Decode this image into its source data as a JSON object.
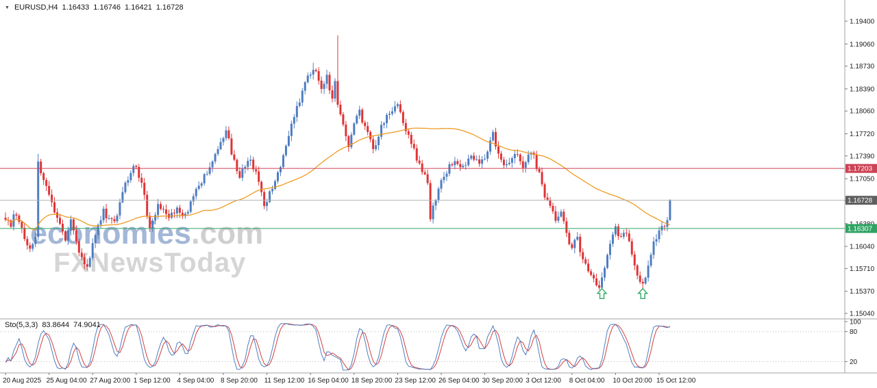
{
  "header": {
    "dropdown_icon": "▼",
    "symbol": "EURUSD,H4",
    "open": "1.16433",
    "high": "1.16746",
    "low": "1.16421",
    "close": "1.16728"
  },
  "watermark": {
    "brand": "economies",
    "brand_suffix": ".com",
    "tagline": "FXNewsToday"
  },
  "indicator": {
    "label": "Sto(5,3,3)",
    "value_main": "83.8644",
    "value_signal": "74.9041"
  },
  "colors": {
    "candle_up": "#4f7dc0",
    "candle_down": "#df3336",
    "ma_line": "#ee9a20",
    "level_red_line": "#cc4154",
    "level_red_badge": "#cc4154",
    "level_green_line": "#2fa363",
    "level_green_badge": "#2fa363",
    "current_price_line": "#b3b3b3",
    "current_price_badge": "#5f5f5f",
    "sto_main": "#4f7dc0",
    "sto_signal": "#d23f3f",
    "sto_level_line": "#bbbbbb",
    "axis_text": "#1c1c1c",
    "separator": "#a0a0a0",
    "tick": "#777777",
    "arrow_green": "#3fae6e"
  },
  "chart_data": {
    "type": "candlestick",
    "symbol": "EURUSD",
    "timeframe": "H4",
    "candle_count": 245,
    "y_axis": {
      "min": 1.1504,
      "max": 1.194,
      "ticks": [
        {
          "label": "1.19400",
          "price": 1.194
        },
        {
          "label": "1.19060",
          "price": 1.1906
        },
        {
          "label": "1.18730",
          "price": 1.1873
        },
        {
          "label": "1.18390",
          "price": 1.1839
        },
        {
          "label": "1.18060",
          "price": 1.1806
        },
        {
          "label": "1.17720",
          "price": 1.1772
        },
        {
          "label": "1.17390",
          "price": 1.1739
        },
        {
          "label": "1.17050",
          "price": 1.1705
        },
        {
          "label": "1.16720",
          "price": 1.1672
        },
        {
          "label": "1.16380",
          "price": 1.1638
        },
        {
          "label": "1.16040",
          "price": 1.1604
        },
        {
          "label": "1.15710",
          "price": 1.1571
        },
        {
          "label": "1.15370",
          "price": 1.1537
        },
        {
          "label": "1.15040",
          "price": 1.1504
        }
      ]
    },
    "x_axis": {
      "labels": [
        {
          "text": "20 Aug 2025",
          "index": 0
        },
        {
          "text": "25 Aug 04:00",
          "index": 16
        },
        {
          "text": "27 Aug 20:00",
          "index": 32
        },
        {
          "text": "1 Sep 12:00",
          "index": 48
        },
        {
          "text": "4 Sep 04:00",
          "index": 64
        },
        {
          "text": "8 Sep 20:00",
          "index": 80
        },
        {
          "text": "11 Sep 12:00",
          "index": 96
        },
        {
          "text": "16 Sep 04:00",
          "index": 112
        },
        {
          "text": "18 Sep 20:00",
          "index": 128
        },
        {
          "text": "23 Sep 12:00",
          "index": 144
        },
        {
          "text": "26 Sep 04:00",
          "index": 160
        },
        {
          "text": "30 Sep 20:00",
          "index": 176
        },
        {
          "text": "3 Oct 12:00",
          "index": 192
        },
        {
          "text": "8 Oct 04:00",
          "index": 208
        },
        {
          "text": "10 Oct 20:00",
          "index": 224
        },
        {
          "text": "15 Oct 12:00",
          "index": 240
        }
      ]
    },
    "levels": [
      {
        "label": "1.17203",
        "price": 1.17203,
        "line_color": "level_red_line",
        "badge_color": "level_red_badge",
        "kind": "resistance"
      },
      {
        "label": "1.16307",
        "price": 1.16307,
        "line_color": "level_green_line",
        "badge_color": "level_green_badge",
        "kind": "support"
      },
      {
        "label": "1.16728",
        "price": 1.16728,
        "line_color": "current_price_line",
        "badge_color": "current_price_badge",
        "kind": "current-price"
      }
    ],
    "price_path": [
      [
        0,
        1.1648
      ],
      [
        2,
        1.1638
      ],
      [
        4,
        1.1655
      ],
      [
        6,
        1.163
      ],
      [
        9,
        1.1596
      ],
      [
        11,
        1.1615
      ],
      [
        12,
        1.173
      ],
      [
        15,
        1.169
      ],
      [
        18,
        1.166
      ],
      [
        22,
        1.1612
      ],
      [
        24,
        1.164
      ],
      [
        27,
        1.16
      ],
      [
        30,
        1.1572
      ],
      [
        33,
        1.162
      ],
      [
        36,
        1.1655
      ],
      [
        40,
        1.164
      ],
      [
        44,
        1.1695
      ],
      [
        47,
        1.1727
      ],
      [
        50,
        1.17
      ],
      [
        53,
        1.1632
      ],
      [
        56,
        1.1668
      ],
      [
        60,
        1.1645
      ],
      [
        63,
        1.1662
      ],
      [
        66,
        1.165
      ],
      [
        70,
        1.1685
      ],
      [
        74,
        1.1715
      ],
      [
        78,
        1.1745
      ],
      [
        81,
        1.1778
      ],
      [
        84,
        1.173
      ],
      [
        86,
        1.1705
      ],
      [
        89,
        1.1735
      ],
      [
        92,
        1.1715
      ],
      [
        95,
        1.1665
      ],
      [
        98,
        1.169
      ],
      [
        102,
        1.174
      ],
      [
        106,
        1.18
      ],
      [
        110,
        1.1845
      ],
      [
        113,
        1.1872
      ],
      [
        116,
        1.1838
      ],
      [
        118,
        1.1858
      ],
      [
        120,
        1.1822
      ],
      [
        121,
        1.1852
      ],
      [
        122,
        1.1818
      ],
      [
        124,
        1.1785
      ],
      [
        126,
        1.1757
      ],
      [
        128,
        1.179
      ],
      [
        130,
        1.1805
      ],
      [
        133,
        1.177
      ],
      [
        135,
        1.1747
      ],
      [
        138,
        1.178
      ],
      [
        141,
        1.1806
      ],
      [
        144,
        1.1818
      ],
      [
        146,
        1.179
      ],
      [
        149,
        1.1757
      ],
      [
        152,
        1.1727
      ],
      [
        155,
        1.1702
      ],
      [
        156,
        1.165
      ],
      [
        159,
        1.169
      ],
      [
        162,
        1.1716
      ],
      [
        165,
        1.1735
      ],
      [
        168,
        1.1722
      ],
      [
        171,
        1.1741
      ],
      [
        174,
        1.1726
      ],
      [
        177,
        1.1746
      ],
      [
        179,
        1.1774
      ],
      [
        181,
        1.1741
      ],
      [
        184,
        1.1723
      ],
      [
        187,
        1.1741
      ],
      [
        190,
        1.1726
      ],
      [
        193,
        1.1748
      ],
      [
        196,
        1.1712
      ],
      [
        198,
        1.1682
      ],
      [
        200,
        1.1662
      ],
      [
        202,
        1.1642
      ],
      [
        204,
        1.1656
      ],
      [
        206,
        1.1622
      ],
      [
        208,
        1.1602
      ],
      [
        210,
        1.1616
      ],
      [
        212,
        1.1582
      ],
      [
        214,
        1.1566
      ],
      [
        216,
        1.1552
      ],
      [
        218,
        1.1543
      ],
      [
        220,
        1.1576
      ],
      [
        222,
        1.1606
      ],
      [
        224,
        1.163
      ],
      [
        226,
        1.1613
      ],
      [
        228,
        1.1626
      ],
      [
        230,
        1.1592
      ],
      [
        232,
        1.1562
      ],
      [
        234,
        1.1546
      ],
      [
        236,
        1.1571
      ],
      [
        238,
        1.1606
      ],
      [
        240,
        1.1628
      ],
      [
        242,
        1.1632
      ],
      [
        243,
        1.16433
      ],
      [
        244,
        1.16728
      ]
    ],
    "spikes": [
      {
        "index": 12,
        "high": 1.1742
      },
      {
        "index": 113,
        "high": 1.1878
      },
      {
        "index": 122,
        "high": 1.1919
      },
      {
        "index": 156,
        "low": 1.1641
      },
      {
        "index": 218,
        "low": 1.1539
      },
      {
        "index": 234,
        "low": 1.1541
      }
    ],
    "ma_period": 62,
    "arrows": [
      {
        "index": 219,
        "price": 1.1541,
        "direction": "up"
      },
      {
        "index": 234,
        "price": 1.1541,
        "direction": "up"
      }
    ],
    "stochastic": {
      "label": "Sto(5,3,3)",
      "k_period": 5,
      "slowing": 3,
      "d_period": 3,
      "last_k": 83.8644,
      "last_d": 74.9041,
      "levels": [
        20,
        80
      ],
      "scale_labels": [
        {
          "label": "100",
          "value": 100
        },
        {
          "label": "80",
          "value": 80
        },
        {
          "label": "20",
          "value": 20
        }
      ],
      "range": [
        0,
        100
      ]
    }
  }
}
